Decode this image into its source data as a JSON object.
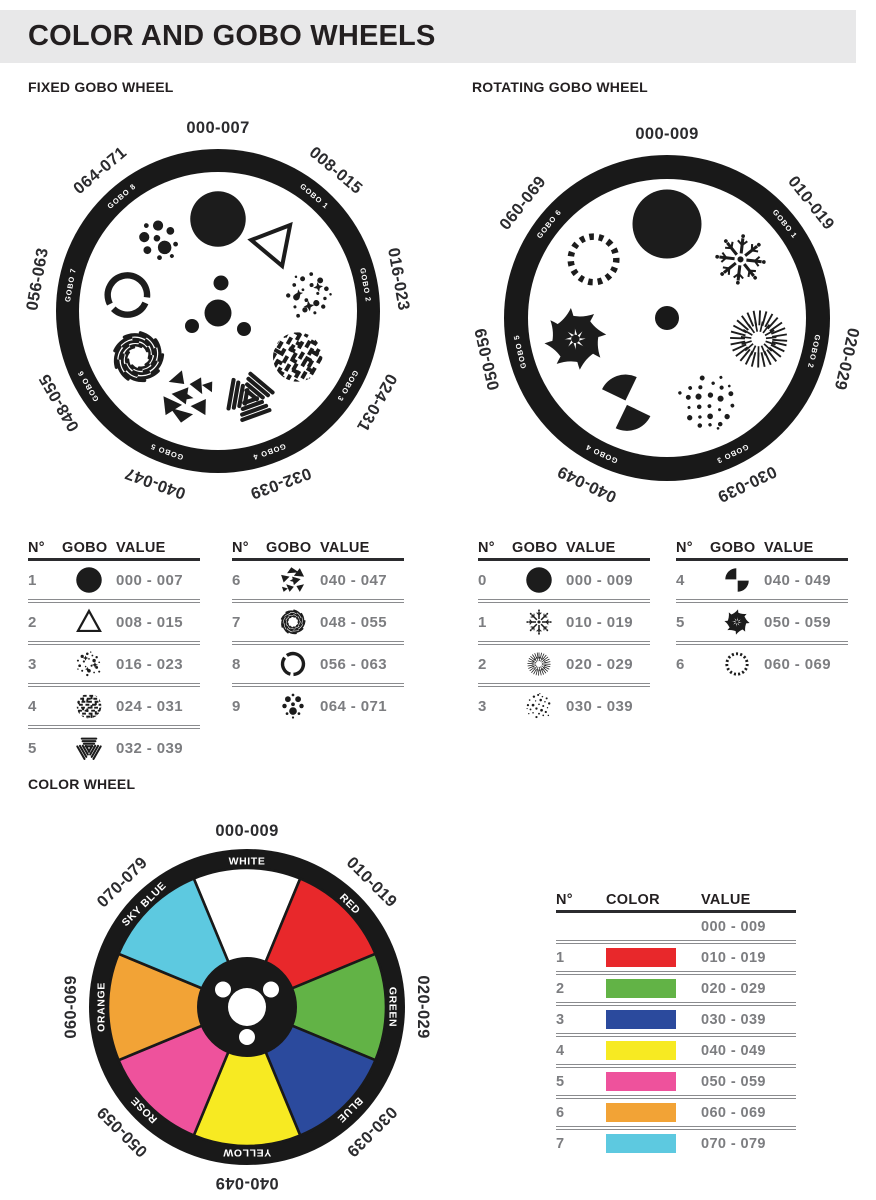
{
  "page": {
    "title": "COLOR AND GOBO WHEELS"
  },
  "sections": {
    "fixed_title": "FIXED GOBO WHEEL",
    "rotating_title": "ROTATING GOBO WHEEL",
    "color_title": "COLOR WHEEL"
  },
  "fixed_wheel": {
    "positions": [
      {
        "value": "000-007",
        "icon": "solid-circle",
        "ring_label": ""
      },
      {
        "value": "008-015",
        "icon": "triangle",
        "ring_label": "GOBO 1"
      },
      {
        "value": "016-023",
        "icon": "stars",
        "ring_label": "GOBO 2"
      },
      {
        "value": "024-031",
        "icon": "breakup",
        "ring_label": "GOBO 3"
      },
      {
        "value": "032-039",
        "icon": "tri-lines",
        "ring_label": "GOBO 4"
      },
      {
        "value": "040-047",
        "icon": "shatter",
        "ring_label": "GOBO 5"
      },
      {
        "value": "048-055",
        "icon": "vortex",
        "ring_label": "GOBO 6"
      },
      {
        "value": "056-063",
        "icon": "broken-ring",
        "ring_label": "GOBO 7"
      },
      {
        "value": "064-071",
        "icon": "dot-cluster",
        "ring_label": "GOBO 8"
      }
    ]
  },
  "rotating_wheel": {
    "positions": [
      {
        "value": "000-009",
        "icon": "solid-circle",
        "ring_label": ""
      },
      {
        "value": "010-019",
        "icon": "snowflake",
        "ring_label": "GOBO 1"
      },
      {
        "value": "020-029",
        "icon": "starburst",
        "ring_label": "GOBO 2"
      },
      {
        "value": "030-039",
        "icon": "dots-scatter",
        "ring_label": "GOBO 3"
      },
      {
        "value": "040-049",
        "icon": "quarters",
        "ring_label": "GOBO 4"
      },
      {
        "value": "050-059",
        "icon": "pinwheel",
        "ring_label": "GOBO 5"
      },
      {
        "value": "060-069",
        "icon": "dashed-ring",
        "ring_label": "GOBO 6"
      }
    ]
  },
  "gobo_tables": [
    {
      "headers": [
        "N°",
        "GOBO",
        "VALUE"
      ],
      "rows": [
        {
          "n": "1",
          "icon": "solid-circle",
          "value": "000 - 007"
        },
        {
          "n": "2",
          "icon": "triangle",
          "value": "008 - 015"
        },
        {
          "n": "3",
          "icon": "stars",
          "value": "016 - 023"
        },
        {
          "n": "4",
          "icon": "breakup",
          "value": "024 - 031"
        },
        {
          "n": "5",
          "icon": "tri-lines",
          "value": "032 - 039"
        }
      ]
    },
    {
      "headers": [
        "N°",
        "GOBO",
        "VALUE"
      ],
      "rows": [
        {
          "n": "6",
          "icon": "shatter",
          "value": "040 - 047"
        },
        {
          "n": "7",
          "icon": "vortex",
          "value": "048 - 055"
        },
        {
          "n": "8",
          "icon": "broken-ring",
          "value": "056 - 063"
        },
        {
          "n": "9",
          "icon": "dot-cluster",
          "value": "064 - 071"
        }
      ]
    },
    {
      "headers": [
        "N°",
        "GOBO",
        "VALUE"
      ],
      "rows": [
        {
          "n": "0",
          "icon": "solid-circle",
          "value": "000 - 009"
        },
        {
          "n": "1",
          "icon": "snowflake",
          "value": "010 - 019"
        },
        {
          "n": "2",
          "icon": "starburst",
          "value": "020 - 029"
        },
        {
          "n": "3",
          "icon": "dots-scatter",
          "value": "030 - 039"
        }
      ]
    },
    {
      "headers": [
        "N°",
        "GOBO",
        "VALUE"
      ],
      "rows": [
        {
          "n": "4",
          "icon": "quarters",
          "value": "040 - 049"
        },
        {
          "n": "5",
          "icon": "pinwheel",
          "value": "050 - 059"
        },
        {
          "n": "6",
          "icon": "dashed-ring",
          "value": "060 - 069"
        }
      ]
    }
  ],
  "color_wheel": {
    "segments": [
      {
        "name": "WHITE",
        "value": "000-009",
        "color": "#ffffff"
      },
      {
        "name": "RED",
        "value": "010-019",
        "color": "#e8282b"
      },
      {
        "name": "GREEN",
        "value": "020-029",
        "color": "#62b346"
      },
      {
        "name": "BLUE",
        "value": "030-039",
        "color": "#2b4a9d"
      },
      {
        "name": "YELLOW",
        "value": "040-049",
        "color": "#f7ea22"
      },
      {
        "name": "ROSE",
        "value": "050-059",
        "color": "#ee529c"
      },
      {
        "name": "ORANGE",
        "value": "060-069",
        "color": "#f2a336"
      },
      {
        "name": "SKY BLUE",
        "value": "070-079",
        "color": "#5dc9e0"
      }
    ]
  },
  "color_table": {
    "headers": [
      "N°",
      "COLOR",
      "VALUE"
    ],
    "rows": [
      {
        "n": "",
        "color": "",
        "value": "000 - 009"
      },
      {
        "n": "1",
        "color": "#e8282b",
        "value": "010 - 019"
      },
      {
        "n": "2",
        "color": "#62b346",
        "value": "020 - 029"
      },
      {
        "n": "3",
        "color": "#2b4a9d",
        "value": "030 - 039"
      },
      {
        "n": "4",
        "color": "#f7ea22",
        "value": "040 - 049"
      },
      {
        "n": "5",
        "color": "#ee529c",
        "value": "050 - 059"
      },
      {
        "n": "6",
        "color": "#f2a336",
        "value": "060 - 069"
      },
      {
        "n": "7",
        "color": "#5dc9e0",
        "value": "070 - 079"
      }
    ]
  }
}
